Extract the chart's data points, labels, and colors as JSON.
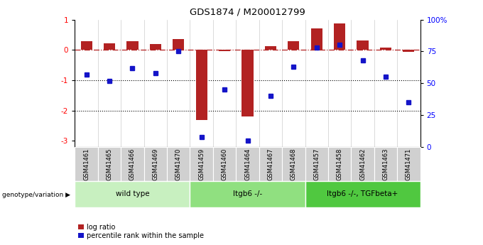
{
  "title": "GDS1874 / M200012799",
  "samples": [
    "GSM41461",
    "GSM41465",
    "GSM41466",
    "GSM41469",
    "GSM41470",
    "GSM41459",
    "GSM41460",
    "GSM41464",
    "GSM41467",
    "GSM41468",
    "GSM41457",
    "GSM41458",
    "GSM41462",
    "GSM41463",
    "GSM41471"
  ],
  "log_ratio": [
    0.28,
    0.22,
    0.28,
    0.2,
    0.35,
    -2.3,
    -0.05,
    -2.2,
    0.12,
    0.28,
    0.7,
    0.88,
    0.3,
    0.07,
    -0.07
  ],
  "percentile_rank": [
    57,
    52,
    62,
    58,
    75,
    8,
    45,
    5,
    40,
    63,
    78,
    80,
    68,
    55,
    35
  ],
  "groups": [
    {
      "label": "wild type",
      "start": 0,
      "end": 5,
      "color": "#c8f0c0"
    },
    {
      "label": "Itgb6 -/-",
      "start": 5,
      "end": 10,
      "color": "#90e080"
    },
    {
      "label": "Itgb6 -/-, TGFbeta+",
      "start": 10,
      "end": 15,
      "color": "#50c840"
    }
  ],
  "bar_color_red": "#b22222",
  "bar_color_blue": "#1414c8",
  "ylim_left": [
    -3.2,
    1.0
  ],
  "ylim_right": [
    0,
    100
  ],
  "yticks_left": [
    -3,
    -2,
    -1,
    0,
    1
  ],
  "yticks_right": [
    0,
    25,
    50,
    75,
    100
  ],
  "ytick_labels_right": [
    "0",
    "25",
    "50",
    "75",
    "100%"
  ],
  "dotted_lines": [
    -1,
    -2
  ],
  "bar_width": 0.5,
  "legend_red": "log ratio",
  "legend_blue": "percentile rank within the sample",
  "genotype_label": "genotype/variation"
}
